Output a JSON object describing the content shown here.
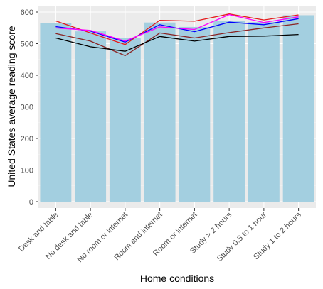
{
  "chart_data": {
    "type": "bar",
    "title": "",
    "xlabel": "Home conditions",
    "ylabel": "United States average reading score",
    "categories": [
      "Desk and table",
      "No desk and table",
      "No room or internet",
      "Room and internet",
      "Room or internet",
      "Study > 2 hours",
      "Study 0.5 to 1 hour",
      "Study 1 to  2 hours"
    ],
    "ylim": [
      0,
      615
    ],
    "yticks": [
      0,
      100,
      200,
      300,
      400,
      500,
      600
    ],
    "ytick_labels": [
      "0",
      "100",
      "200",
      "300",
      "400",
      "500",
      "600"
    ],
    "grid": true,
    "bar_color": "#a3cfe0",
    "panel_color": "#ebebeb",
    "values": [
      565,
      539,
      517,
      567,
      553,
      571,
      568,
      590
    ],
    "series": [
      {
        "color": "#e41a1c",
        "values": [
          572,
          534,
          497,
          574,
          571,
          594,
          575,
          591
        ]
      },
      {
        "color": "#0000ff",
        "values": [
          554,
          540,
          505,
          560,
          538,
          568,
          560,
          579
        ]
      },
      {
        "color": "#ff00ff",
        "values": [
          550,
          542,
          508,
          553,
          545,
          592,
          567,
          585
        ]
      },
      {
        "color": "#8b2323",
        "values": [
          532,
          508,
          462,
          534,
          518,
          535,
          550,
          563
        ]
      },
      {
        "color": "#000000",
        "values": [
          518,
          490,
          476,
          523,
          508,
          523,
          524,
          529
        ]
      }
    ]
  }
}
